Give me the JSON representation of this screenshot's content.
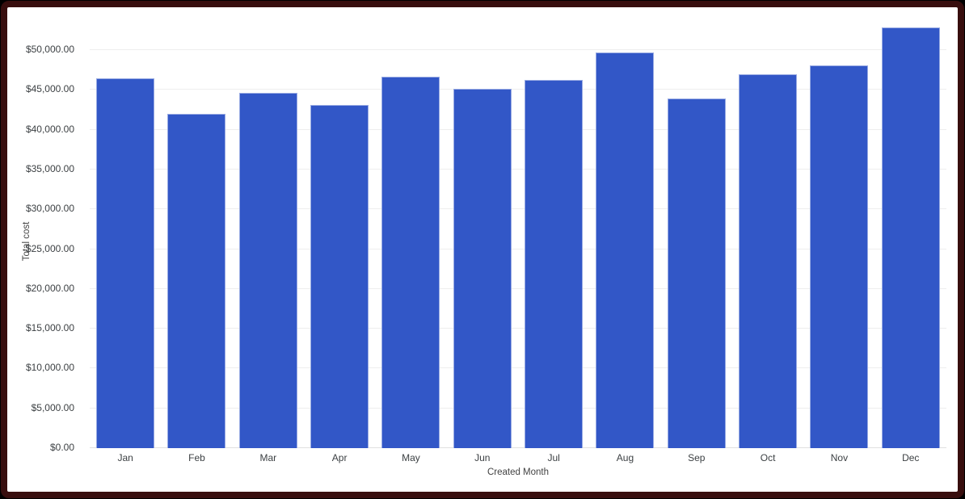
{
  "frame": {
    "page_background": "#000000",
    "border_color": "#380E0E",
    "background": "#ffffff"
  },
  "chart_data": {
    "type": "bar",
    "title": "",
    "categories": [
      "Jan",
      "Feb",
      "Mar",
      "Apr",
      "May",
      "Jun",
      "Jul",
      "Aug",
      "Sep",
      "Oct",
      "Nov",
      "Dec"
    ],
    "values": [
      46500,
      42000,
      44600,
      43100,
      46700,
      45100,
      46200,
      49700,
      43900,
      47000,
      48100,
      52800
    ],
    "xlabel": "Created Month",
    "ylabel": "Total cost",
    "ylim": [
      0,
      55000
    ],
    "ytick_interval": 5000,
    "ytick_labels": [
      "$0.00",
      "$5,000.00",
      "$10,000.00",
      "$15,000.00",
      "$20,000.00",
      "$25,000.00",
      "$30,000.00",
      "$35,000.00",
      "$40,000.00",
      "$45,000.00",
      "$50,000.00"
    ],
    "grid": true,
    "legend": "none",
    "bar_color": "#3257C7",
    "bar_edge_color": "rgba(255,255,255,0.5)",
    "gridline_color": "#eeeeee",
    "baseline_color": "#e0e0e0",
    "label_color": "#3c4043",
    "axis_title_color": "#424242"
  }
}
